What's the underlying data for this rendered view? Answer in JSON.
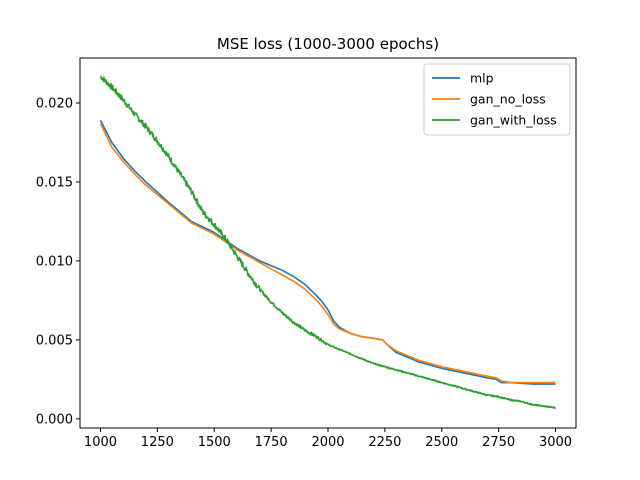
{
  "chart_data": {
    "type": "line",
    "title": "MSE loss (1000-3000 epochs)",
    "xlabel": "",
    "ylabel": "",
    "xlim": [
      910,
      3090
    ],
    "ylim": [
      -0.00058,
      0.02285
    ],
    "xticks": [
      1000,
      1250,
      1500,
      1750,
      2000,
      2250,
      2500,
      2750,
      3000
    ],
    "xtick_labels": [
      "1000",
      "1250",
      "1500",
      "1750",
      "2000",
      "2250",
      "2500",
      "2750",
      "3000"
    ],
    "yticks": [
      0.0,
      0.005,
      0.01,
      0.015,
      0.02
    ],
    "ytick_labels": [
      "0.000",
      "0.005",
      "0.010",
      "0.015",
      "0.020"
    ],
    "grid": false,
    "legend_position": "top-right",
    "series": [
      {
        "name": "mlp",
        "color": "#1f77b4",
        "x": [
          1000,
          1050,
          1100,
          1150,
          1200,
          1300,
          1400,
          1500,
          1550,
          1600,
          1650,
          1700,
          1750,
          1800,
          1850,
          1900,
          1950,
          1975,
          2000,
          2025,
          2050,
          2100,
          2150,
          2200,
          2240,
          2260,
          2300,
          2400,
          2500,
          2600,
          2700,
          2740,
          2760,
          2800,
          2900,
          3000
        ],
        "y": [
          0.0189,
          0.0175,
          0.0165,
          0.0157,
          0.015,
          0.0137,
          0.0125,
          0.0118,
          0.0113,
          0.0108,
          0.0104,
          0.01,
          0.0097,
          0.0094,
          0.009,
          0.0085,
          0.0078,
          0.0074,
          0.0069,
          0.0062,
          0.0058,
          0.0054,
          0.0052,
          0.0051,
          0.005,
          0.0047,
          0.0042,
          0.0036,
          0.0032,
          0.0029,
          0.0026,
          0.0025,
          0.0023,
          0.0023,
          0.0022,
          0.0022
        ]
      },
      {
        "name": "gan_no_loss",
        "color": "#ff7f0e",
        "x": [
          1000,
          1050,
          1100,
          1150,
          1200,
          1300,
          1400,
          1500,
          1550,
          1600,
          1650,
          1700,
          1750,
          1800,
          1850,
          1900,
          1950,
          1975,
          2000,
          2025,
          2050,
          2100,
          2150,
          2200,
          2240,
          2260,
          2300,
          2400,
          2500,
          2600,
          2700,
          2740,
          2760,
          2800,
          2900,
          3000
        ],
        "y": [
          0.0187,
          0.0172,
          0.0163,
          0.0155,
          0.0148,
          0.0136,
          0.0124,
          0.0117,
          0.0112,
          0.0107,
          0.0103,
          0.0099,
          0.0095,
          0.0091,
          0.0087,
          0.0082,
          0.0075,
          0.0071,
          0.0066,
          0.006,
          0.0057,
          0.0054,
          0.0052,
          0.0051,
          0.005,
          0.0047,
          0.0043,
          0.0037,
          0.0033,
          0.003,
          0.0027,
          0.0026,
          0.0024,
          0.0023,
          0.0023,
          0.0023
        ]
      },
      {
        "name": "gan_with_loss",
        "color": "#2ca02c",
        "x": [
          1000,
          1050,
          1100,
          1150,
          1200,
          1250,
          1300,
          1350,
          1400,
          1450,
          1500,
          1550,
          1600,
          1650,
          1700,
          1750,
          1800,
          1850,
          1900,
          1950,
          2000,
          2050,
          2100,
          2150,
          2200,
          2250,
          2300,
          2350,
          2400,
          2450,
          2500,
          2550,
          2600,
          2650,
          2700,
          2750,
          2800,
          2850,
          2900,
          2950,
          3000
        ],
        "y": [
          0.0217,
          0.021,
          0.0202,
          0.0193,
          0.0185,
          0.0176,
          0.0166,
          0.0155,
          0.0144,
          0.0131,
          0.0123,
          0.0114,
          0.0103,
          0.0092,
          0.0082,
          0.0074,
          0.0067,
          0.0061,
          0.0056,
          0.0052,
          0.0047,
          0.0044,
          0.0041,
          0.0038,
          0.0035,
          0.0033,
          0.0031,
          0.0029,
          0.0027,
          0.0025,
          0.0023,
          0.0021,
          0.0019,
          0.0017,
          0.0015,
          0.0014,
          0.0012,
          0.0011,
          0.0009,
          0.0008,
          0.0007
        ]
      }
    ]
  }
}
